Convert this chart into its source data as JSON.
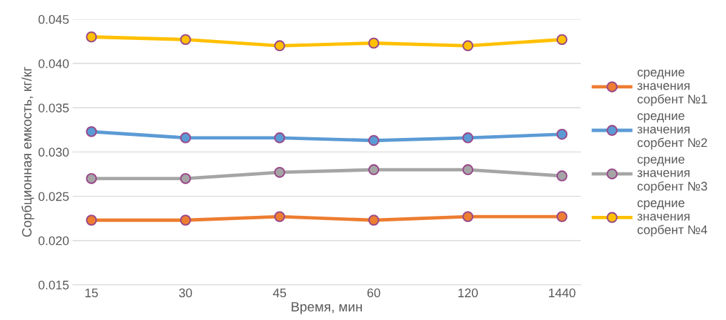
{
  "chart_data": {
    "type": "line",
    "xlabel": "Время, мин",
    "ylabel": "Сорбционная емкость, кг/кг",
    "categories": [
      "15",
      "30",
      "45",
      "60",
      "120",
      "1440"
    ],
    "series": [
      {
        "name": "средние значения сорбент №1",
        "color": "#ed7d31",
        "values": [
          0.0223,
          0.0223,
          0.0227,
          0.0223,
          0.0227,
          0.0227
        ]
      },
      {
        "name": "средние значения сорбент №2",
        "color": "#5b9bd5",
        "values": [
          0.0323,
          0.0316,
          0.0316,
          0.0313,
          0.0316,
          0.032
        ]
      },
      {
        "name": "средние значения сорбент №3",
        "color": "#a5a5a5",
        "values": [
          0.027,
          0.027,
          0.0277,
          0.028,
          0.028,
          0.0273
        ]
      },
      {
        "name": "средние значения сорбент №4",
        "color": "#ffc000",
        "values": [
          0.043,
          0.0427,
          0.042,
          0.0423,
          0.042,
          0.0427
        ]
      }
    ],
    "ylim": [
      0.015,
      0.045
    ],
    "yticks": [
      0.015,
      {
        "value": 0.02,
        "label": "0.020"
      },
      0.025,
      {
        "value": 0.03,
        "label": "0.030"
      },
      0.035,
      {
        "value": 0.04,
        "label": "0.040"
      },
      0.045
    ],
    "grid": "y",
    "legend": "right",
    "marker": "circle",
    "line_style": "solid"
  }
}
